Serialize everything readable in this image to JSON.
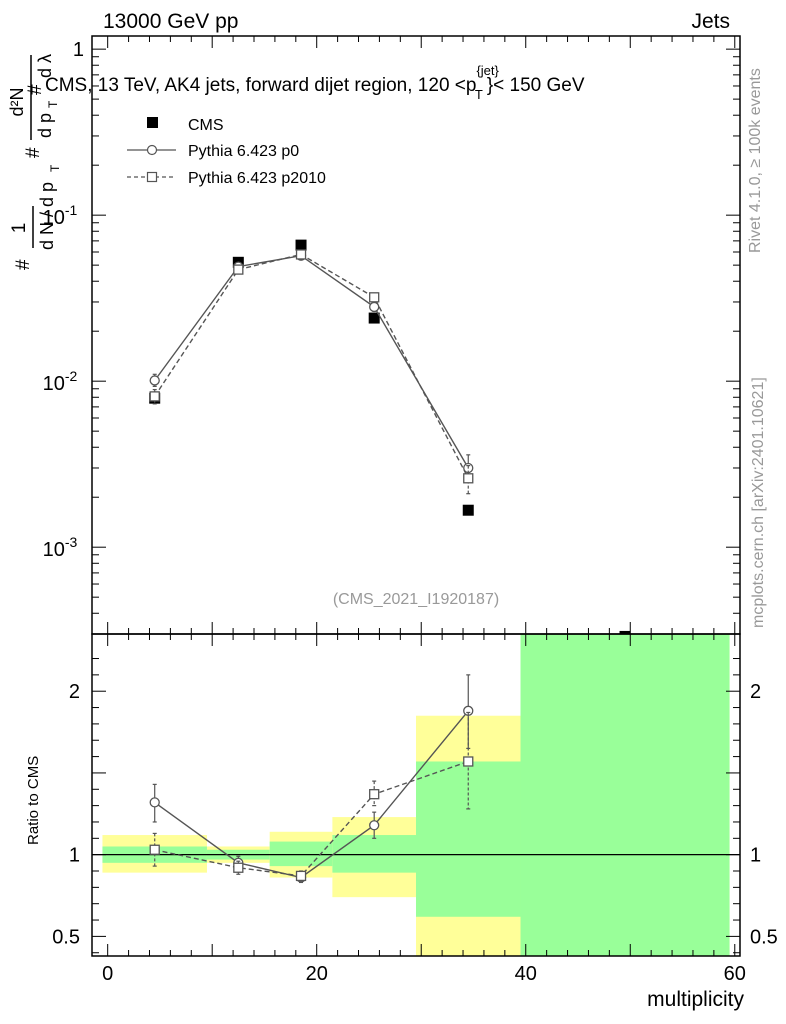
{
  "header": {
    "energy_label": "13000 GeV pp",
    "category_label": "Jets"
  },
  "side_labels": {
    "rivet": "Rivet 4.1.0, ≥ 100k events",
    "site": "mcplots.cern.ch [arXiv:2401.10621]"
  },
  "watermark": "(CMS_2021_I1920187)",
  "main_plot": {
    "title": "CMS, 13 TeV, AK4 jets, forward dijet region, 120 <p",
    "title_sup": "{jet}",
    "title_sub": "T",
    "title_tail": "}< 150 GeV",
    "ylabel": "1/N dN/dp_T dλ",
    "yscale": "log",
    "ylim": [
      0.0003,
      1.2
    ],
    "yticks": [
      {
        "value": 1,
        "label": "1"
      },
      {
        "value": 0.1,
        "label": "10",
        "exp": "-1"
      },
      {
        "value": 0.01,
        "label": "10",
        "exp": "-2"
      },
      {
        "value": 0.001,
        "label": "10",
        "exp": "-3"
      }
    ]
  },
  "ratio_plot": {
    "ylabel": "Ratio to CMS",
    "ylim": [
      0.38,
      2.35
    ],
    "yticks": [
      {
        "value": 2,
        "label": "2"
      },
      {
        "value": 1,
        "label": "1"
      },
      {
        "value": 0.5,
        "label": "0.5"
      }
    ],
    "bands": [
      {
        "x0": -0.5,
        "x1": 9.5,
        "stat_lo": 0.95,
        "stat_hi": 1.05,
        "tot_lo": 0.89,
        "tot_hi": 1.12
      },
      {
        "x0": 9.5,
        "x1": 15.5,
        "stat_lo": 0.97,
        "stat_hi": 1.03,
        "tot_lo": 0.95,
        "tot_hi": 1.05
      },
      {
        "x0": 15.5,
        "x1": 21.5,
        "stat_lo": 0.93,
        "stat_hi": 1.08,
        "tot_lo": 0.86,
        "tot_hi": 1.14
      },
      {
        "x0": 21.5,
        "x1": 29.5,
        "stat_lo": 0.89,
        "stat_hi": 1.12,
        "tot_lo": 0.74,
        "tot_hi": 1.23
      },
      {
        "x0": 29.5,
        "x1": 39.5,
        "stat_lo": 0.62,
        "stat_hi": 1.57,
        "tot_lo": 0.38,
        "tot_hi": 1.85
      },
      {
        "x0": 39.5,
        "x1": 59.5,
        "stat_lo": 0.38,
        "stat_hi": 2.35,
        "tot_lo": 0.38,
        "tot_hi": 2.35
      }
    ],
    "p0_ratio": [
      {
        "x": 4.5,
        "y": 1.32,
        "lo": 1.2,
        "hi": 1.43
      },
      {
        "x": 12.5,
        "y": 0.95,
        "lo": 0.91,
        "hi": 0.99
      },
      {
        "x": 18.5,
        "y": 0.86,
        "lo": 0.83,
        "hi": 0.89
      },
      {
        "x": 25.5,
        "y": 1.18,
        "lo": 1.1,
        "hi": 1.26
      },
      {
        "x": 34.5,
        "y": 1.88,
        "lo": 1.65,
        "hi": 2.1
      }
    ],
    "p2010_ratio": [
      {
        "x": 4.5,
        "y": 1.03,
        "lo": 0.93,
        "hi": 1.13
      },
      {
        "x": 12.5,
        "y": 0.92,
        "lo": 0.88,
        "hi": 0.96
      },
      {
        "x": 18.5,
        "y": 0.87,
        "lo": 0.84,
        "hi": 0.9
      },
      {
        "x": 25.5,
        "y": 1.37,
        "lo": 1.3,
        "hi": 1.45
      },
      {
        "x": 34.5,
        "y": 1.57,
        "lo": 1.28,
        "hi": 1.87
      }
    ]
  },
  "legend": {
    "cms": "CMS",
    "p0": "Pythia 6.423 p0",
    "p2010": "Pythia 6.423 p2010"
  },
  "chart_data": {
    "type": "line",
    "xlabel": "multiplicity",
    "xlim": [
      -1.5,
      60.5
    ],
    "xticks": [
      {
        "value": 0,
        "label": "0"
      },
      {
        "value": 20,
        "label": "20"
      },
      {
        "value": 40,
        "label": "40"
      },
      {
        "value": 60,
        "label": "60"
      }
    ],
    "series": [
      {
        "name": "CMS",
        "points": [
          {
            "x": 4.5,
            "y": 0.0079
          },
          {
            "x": 12.5,
            "y": 0.052
          },
          {
            "x": 18.5,
            "y": 0.066
          },
          {
            "x": 25.5,
            "y": 0.024
          },
          {
            "x": 34.5,
            "y": 0.00167
          },
          {
            "x": 49.5,
            "y": 0.00029
          }
        ]
      },
      {
        "name": "Pythia 6.423 p0",
        "points": [
          {
            "x": 4.5,
            "y": 0.0101,
            "lo": 0.0093,
            "hi": 0.011
          },
          {
            "x": 12.5,
            "y": 0.049,
            "lo": 0.047,
            "hi": 0.051
          },
          {
            "x": 18.5,
            "y": 0.057,
            "lo": 0.055,
            "hi": 0.059
          },
          {
            "x": 25.5,
            "y": 0.028,
            "lo": 0.0265,
            "hi": 0.0295
          },
          {
            "x": 34.5,
            "y": 0.003,
            "lo": 0.0026,
            "hi": 0.0036
          }
        ]
      },
      {
        "name": "Pythia 6.423 p2010",
        "points": [
          {
            "x": 4.5,
            "y": 0.0081,
            "lo": 0.0073,
            "hi": 0.0089
          },
          {
            "x": 12.5,
            "y": 0.047,
            "lo": 0.045,
            "hi": 0.049
          },
          {
            "x": 18.5,
            "y": 0.058,
            "lo": 0.056,
            "hi": 0.06
          },
          {
            "x": 25.5,
            "y": 0.032,
            "lo": 0.0305,
            "hi": 0.0335
          },
          {
            "x": 34.5,
            "y": 0.0026,
            "lo": 0.0021,
            "hi": 0.0031
          }
        ]
      }
    ]
  }
}
